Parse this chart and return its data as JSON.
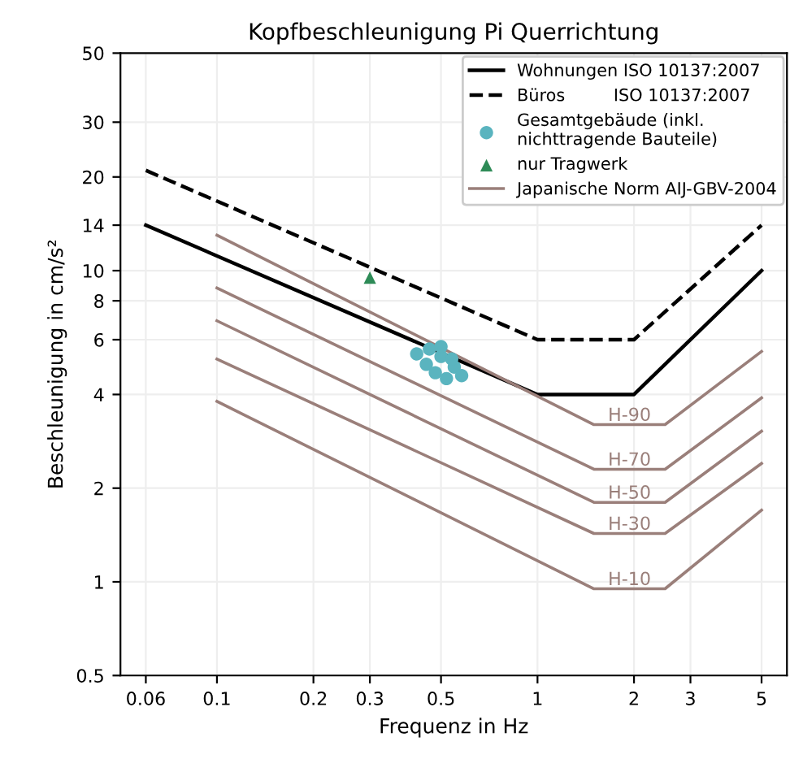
{
  "chart_data": {
    "type": "line",
    "title": "Kopfbeschleunigung Pi Querrichtung",
    "xlabel": "Frequenz in Hz",
    "ylabel": "Beschleunigung in cm/s²",
    "log": "xy",
    "grid": true,
    "legend": "top right",
    "xlim": [
      0.05,
      6
    ],
    "ylim": [
      0.5,
      50
    ],
    "xticks": [
      0.06,
      0.1,
      0.2,
      0.3,
      0.5,
      1,
      2,
      3,
      5
    ],
    "yticks": [
      0.5,
      1,
      2,
      4,
      6,
      8,
      10,
      14,
      20,
      30,
      50
    ],
    "series": [
      {
        "name": "Wohnungen ISO 10137:2007",
        "line_style": "solid",
        "color": "#000000",
        "x": [
          0.06,
          1,
          2,
          5
        ],
        "values": [
          14,
          4,
          4,
          10
        ]
      },
      {
        "name": "Büros         ISO 10137:2007",
        "line_style": "dashed",
        "color": "#000000",
        "x": [
          0.06,
          1,
          2,
          5
        ],
        "values": [
          21,
          6,
          6,
          14
        ]
      },
      {
        "name": "Gesamtgebäude (inkl.\nnichttragende Bauteile)",
        "type": "scatter",
        "marker": "circle",
        "color": "#5ab4bf",
        "x": [
          0.42,
          0.45,
          0.48,
          0.5,
          0.52,
          0.55,
          0.58,
          0.46,
          0.5,
          0.54
        ],
        "values": [
          5.4,
          5.0,
          4.7,
          5.3,
          4.5,
          4.9,
          4.6,
          5.6,
          5.7,
          5.2
        ]
      },
      {
        "name": "nur Tragwerk",
        "type": "scatter",
        "marker": "triangle",
        "color": "#2e8b57",
        "x": [
          0.3
        ],
        "values": [
          9.5
        ]
      },
      {
        "name": "Japanische Norm AIJ-GBV-2004",
        "type": "line",
        "line_style": "solid",
        "color": "#9a7f7a",
        "x": [
          0.1,
          1.5,
          2.5,
          5
        ],
        "values": [
          13,
          3.2,
          3.2,
          5.5
        ]
      },
      {
        "type": "line",
        "line_style": "solid",
        "color": "#9a7f7a",
        "x": [
          0.1,
          1.5,
          2.5,
          5
        ],
        "values": [
          8.8,
          2.3,
          2.3,
          3.9
        ]
      },
      {
        "type": "line",
        "line_style": "solid",
        "color": "#9a7f7a",
        "x": [
          0.1,
          1.5,
          2.5,
          5
        ],
        "values": [
          6.9,
          1.8,
          1.8,
          3.05
        ]
      },
      {
        "type": "line",
        "line_style": "solid",
        "color": "#9a7f7a",
        "x": [
          0.1,
          1.5,
          2.5,
          5
        ],
        "values": [
          5.2,
          1.43,
          1.43,
          2.4
        ]
      },
      {
        "type": "line",
        "line_style": "solid",
        "color": "#9a7f7a",
        "x": [
          0.1,
          1.5,
          2.5,
          5
        ],
        "values": [
          3.8,
          0.95,
          0.95,
          1.7
        ]
      }
    ],
    "annotations": [
      "H-90",
      "H-70",
      "H-50",
      "H-30",
      "H-10"
    ]
  }
}
